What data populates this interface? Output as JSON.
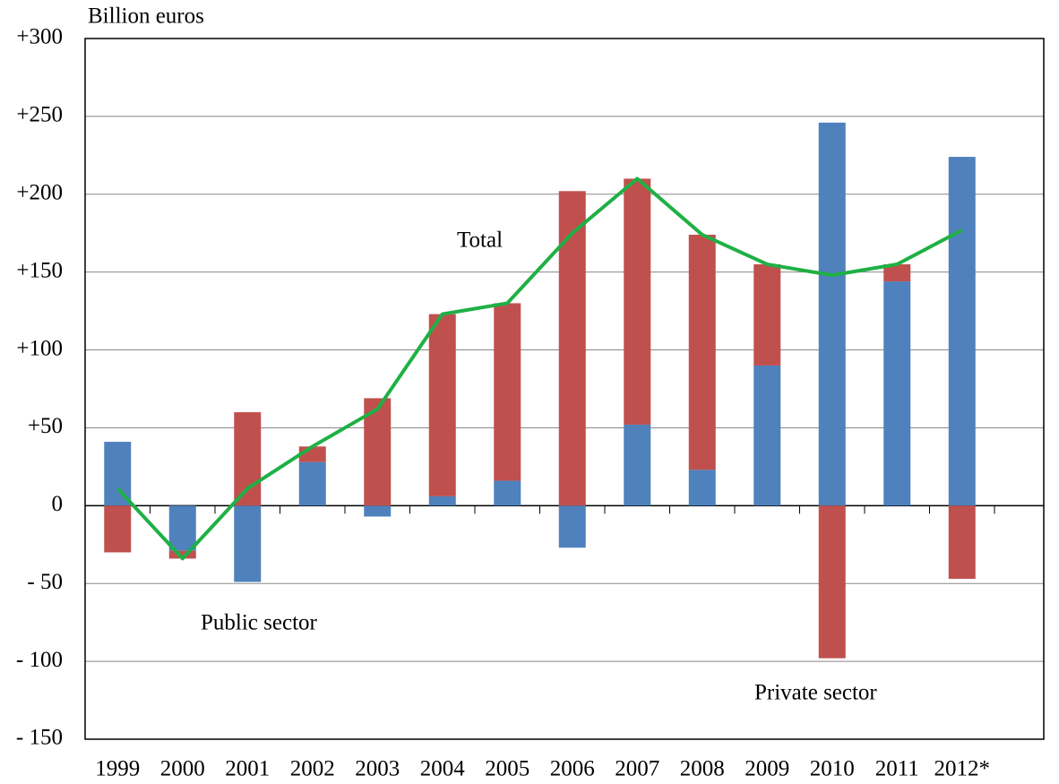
{
  "chart_data": {
    "type": "bar",
    "y_axis_label": "Billion euros",
    "categories": [
      "1999",
      "2000",
      "2001",
      "2002",
      "2003",
      "2004",
      "2005",
      "2006",
      "2007",
      "2008",
      "2009",
      "2010",
      "2011",
      "2012*"
    ],
    "series": [
      {
        "name": "Public sector",
        "color": "#4f81bd",
        "values": [
          41,
          -29,
          -49,
          28,
          -7,
          6,
          16,
          -27,
          52,
          23,
          90,
          246,
          144,
          224
        ]
      },
      {
        "name": "Private sector",
        "color": "#c0504d",
        "values": [
          -30,
          -5,
          60,
          10,
          69,
          117,
          114,
          202,
          158,
          151,
          65,
          -98,
          11,
          -47
        ]
      },
      {
        "name": "Total",
        "type": "line",
        "color": "#1fb045",
        "values": [
          11,
          -34,
          11,
          38,
          62,
          123,
          130,
          175,
          210,
          174,
          155,
          148,
          155,
          177
        ]
      }
    ],
    "stacked": true,
    "ylim": [
      -150,
      300
    ],
    "yticks": [
      {
        "value": -150,
        "label": "- 150"
      },
      {
        "value": -100,
        "label": "- 100"
      },
      {
        "value": -50,
        "label": "- 50"
      },
      0,
      {
        "value": 50,
        "label": "+50"
      },
      {
        "value": 100,
        "label": "+100"
      },
      {
        "value": 150,
        "label": "+150"
      },
      {
        "value": 200,
        "label": "+200"
      },
      {
        "value": 250,
        "label": "+250"
      },
      {
        "value": 300,
        "label": "+300"
      }
    ],
    "grid": true
  }
}
